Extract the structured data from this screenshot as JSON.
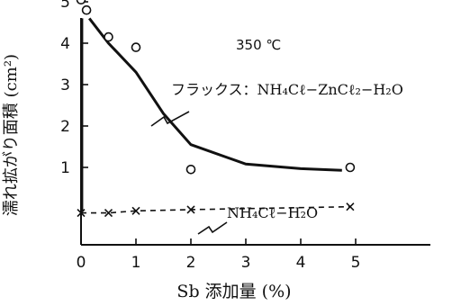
{
  "chart_data": {
    "type": "scatter",
    "title": "",
    "xlabel": "Sb 添加量 (%)",
    "ylabel": "濡れ拡がり面積 (cm²)",
    "xlim": [
      0,
      5.8
    ],
    "ylim": [
      -0.3,
      5.2
    ],
    "xticks": [
      "0",
      "1",
      "2",
      "3",
      "4",
      "5"
    ],
    "yticks": [
      "1",
      "2",
      "3",
      "4",
      "5"
    ],
    "grid": false,
    "annotation": "350 ℃",
    "series": [
      {
        "name": "フラックス：NH₄Cℓ−ZnCℓ₂−H₂O",
        "style": "solid-curve-with-circles",
        "points": [
          [
            0,
            5.05
          ],
          [
            0.1,
            4.8
          ],
          [
            0.5,
            4.15
          ],
          [
            1.0,
            3.9
          ],
          [
            2.0,
            0.95
          ],
          [
            4.9,
            1.0
          ]
        ],
        "curve": [
          [
            0.15,
            4.6
          ],
          [
            0.5,
            4.0
          ],
          [
            1.0,
            3.3
          ],
          [
            1.5,
            2.3
          ],
          [
            2.0,
            1.55
          ],
          [
            3.0,
            1.08
          ],
          [
            4.0,
            0.97
          ],
          [
            4.75,
            0.93
          ]
        ]
      },
      {
        "name": "NH₄Cℓ−H₂O",
        "style": "dashed-with-crosses",
        "points": [
          [
            0,
            -0.1
          ],
          [
            0.5,
            -0.1
          ],
          [
            1.0,
            -0.05
          ],
          [
            2.0,
            -0.02
          ],
          [
            4.9,
            0.05
          ]
        ]
      }
    ]
  }
}
